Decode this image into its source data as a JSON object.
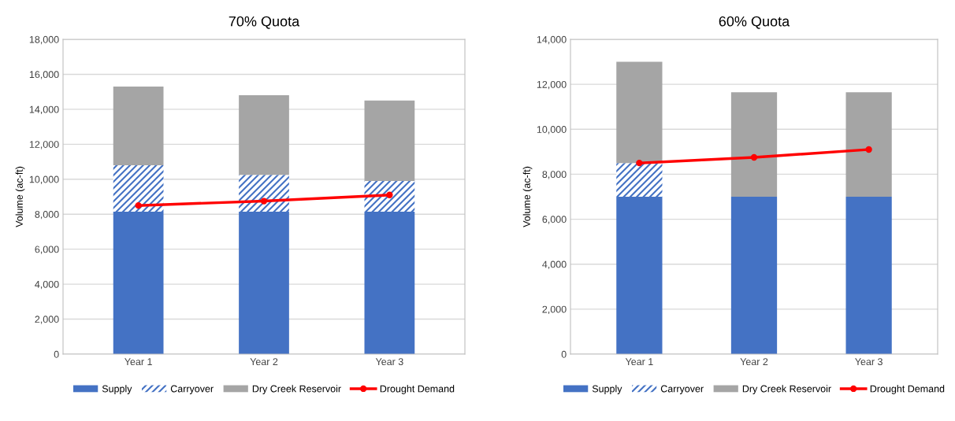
{
  "chart_data": [
    {
      "type": "bar",
      "title": "70% Quota",
      "ylabel": "Volume (ac-ft)",
      "categories": [
        "Year 1",
        "Year 2",
        "Year 3"
      ],
      "stacked": true,
      "ylim": [
        0,
        18000
      ],
      "yticks": [
        {
          "value": 0,
          "label": "0"
        },
        {
          "value": 2000,
          "label": "2,000"
        },
        {
          "value": 4000,
          "label": "4,000"
        },
        {
          "value": 6000,
          "label": "6,000"
        },
        {
          "value": 8000,
          "label": "8,000"
        },
        {
          "value": 10000,
          "label": "10,000"
        },
        {
          "value": 12000,
          "label": "12,000"
        },
        {
          "value": 14000,
          "label": "14,000"
        },
        {
          "value": 16000,
          "label": "16,000"
        },
        {
          "value": 18000,
          "label": "18,000"
        }
      ],
      "grid": "y",
      "legend": "bottom",
      "series": [
        {
          "name": "Supply",
          "color": "#4472c4",
          "values": [
            8150,
            8150,
            8150
          ]
        },
        {
          "name": "Carryover",
          "color": "#4472c4",
          "values": [
            2650,
            2100,
            1750
          ]
        },
        {
          "name": "Dry Creek Reservoir",
          "color": "#a5a5a5",
          "values": [
            4500,
            4550,
            4600
          ]
        },
        {
          "name": "Drought Demand",
          "type": "line",
          "color": "#ff0000",
          "marker": "circle",
          "values": [
            8500,
            8750,
            9100
          ]
        }
      ]
    },
    {
      "type": "bar",
      "title": "60% Quota",
      "ylabel": "Volume (ac-ft)",
      "categories": [
        "Year 1",
        "Year 2",
        "Year 3"
      ],
      "stacked": true,
      "ylim": [
        0,
        14000
      ],
      "yticks": [
        {
          "value": 0,
          "label": "0"
        },
        {
          "value": 2000,
          "label": "2,000"
        },
        {
          "value": 4000,
          "label": "4,000"
        },
        {
          "value": 6000,
          "label": "6,000"
        },
        {
          "value": 8000,
          "label": "8,000"
        },
        {
          "value": 10000,
          "label": "10,000"
        },
        {
          "value": 12000,
          "label": "12,000"
        },
        {
          "value": 14000,
          "label": "14,000"
        }
      ],
      "grid": "y",
      "legend": "bottom",
      "series": [
        {
          "name": "Supply",
          "color": "#4472c4",
          "values": [
            7000,
            7000,
            7000
          ]
        },
        {
          "name": "Carryover",
          "color": "#4472c4",
          "values": [
            1500,
            0,
            0
          ]
        },
        {
          "name": "Dry Creek Reservoir",
          "color": "#a5a5a5",
          "values": [
            4500,
            4650,
            4650
          ]
        },
        {
          "name": "Drought Demand",
          "type": "line",
          "color": "#ff0000",
          "marker": "circle",
          "values": [
            8500,
            8750,
            9100
          ]
        }
      ]
    }
  ]
}
